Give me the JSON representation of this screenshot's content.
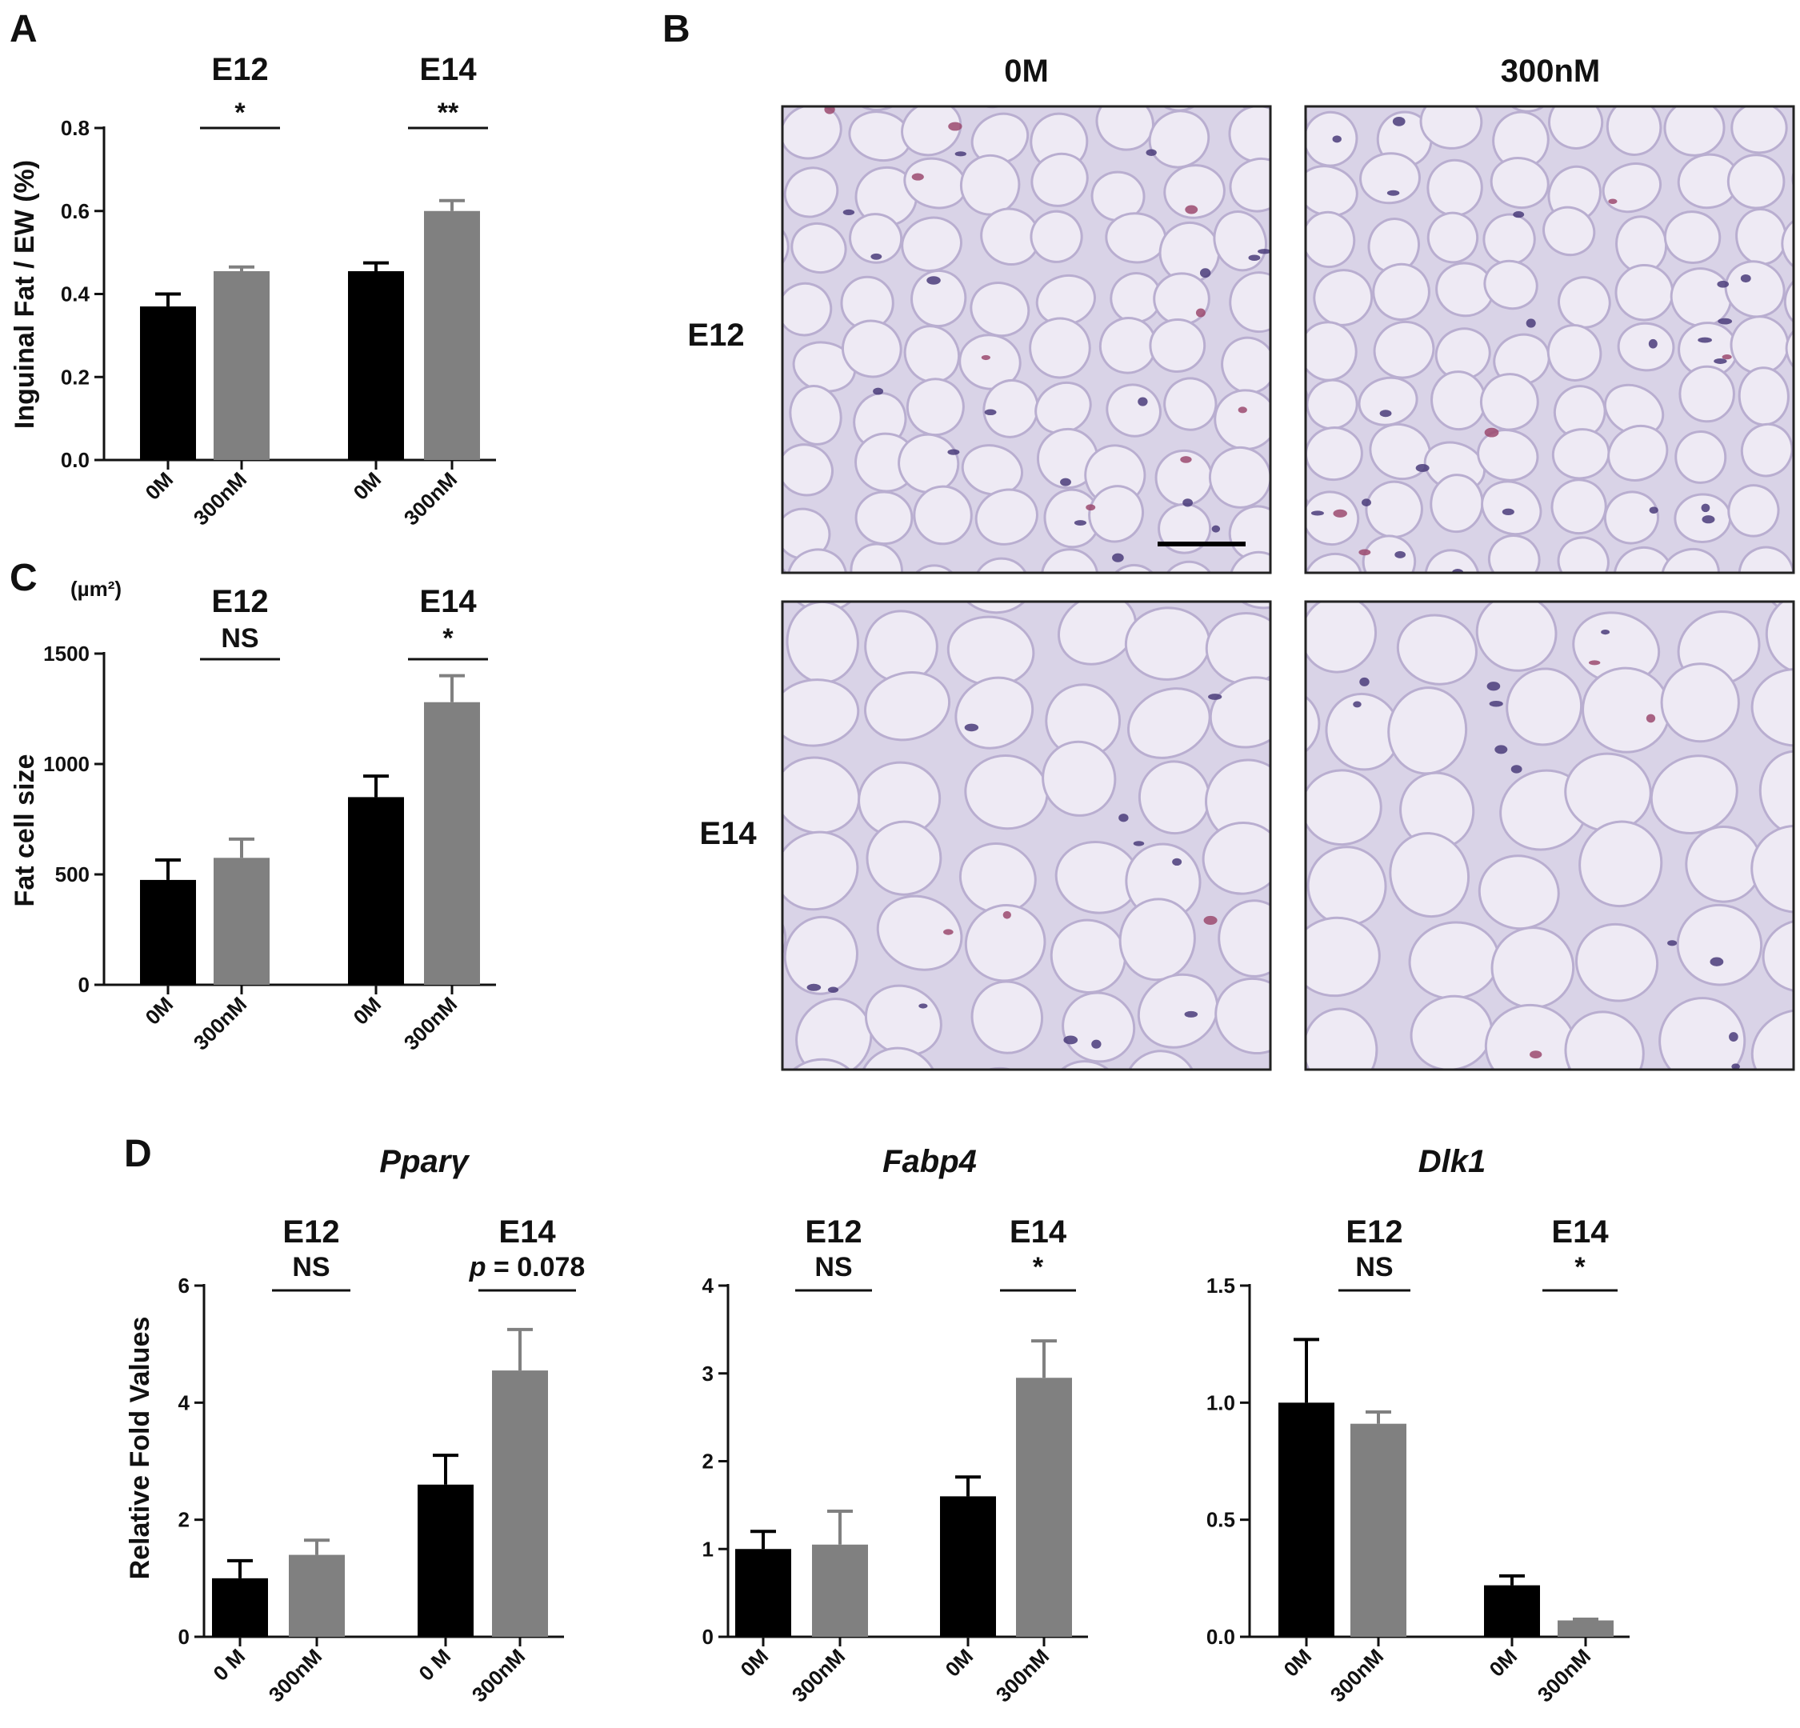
{
  "panels": {
    "a": "A",
    "b": "B",
    "c": "C",
    "d": "D"
  },
  "colors": {
    "group1": "#000000",
    "group2": "#808080",
    "tissue_bg": "#d9d3e7",
    "cell_fill": "#eeeaf4",
    "membrane": "#b9aed0",
    "nucleus": "#4a3c7a",
    "nucleus_pink": "#9b4a6e"
  },
  "histology": {
    "column_labels": [
      "0M",
      "300nM"
    ],
    "row_labels": [
      "E12",
      "E14"
    ],
    "scale_bar": true
  },
  "chart_data": [
    {
      "id": "A",
      "type": "bar",
      "title": "",
      "xlabel": "",
      "ylabel": "Inguinal Fat / EW (%)",
      "unit_label": "",
      "groups": [
        "E12",
        "E14"
      ],
      "categories": [
        "0M",
        "300nM",
        "0M",
        "300nM"
      ],
      "values": [
        0.37,
        0.455,
        0.455,
        0.6
      ],
      "errors": [
        0.03,
        0.01,
        0.02,
        0.025
      ],
      "bar_colors": [
        "#000000",
        "#808080",
        "#000000",
        "#808080"
      ],
      "significance": [
        "*",
        "**"
      ],
      "ylim": [
        0,
        0.8
      ],
      "yticks": [
        "0.0",
        "0.2",
        "0.4",
        "0.6",
        "0.8"
      ],
      "grid": false,
      "legend": "none"
    },
    {
      "id": "C",
      "type": "bar",
      "title": "",
      "xlabel": "",
      "ylabel": "Fat cell size",
      "unit_label": "(µm²)",
      "groups": [
        "E12",
        "E14"
      ],
      "categories": [
        "0M",
        "300nM",
        "0M",
        "300nM"
      ],
      "values": [
        475,
        575,
        850,
        1280
      ],
      "errors": [
        90,
        85,
        95,
        120
      ],
      "bar_colors": [
        "#000000",
        "#808080",
        "#000000",
        "#808080"
      ],
      "significance": [
        "NS",
        "*"
      ],
      "ylim": [
        0,
        1500
      ],
      "yticks": [
        "0",
        "500",
        "1000",
        "1500"
      ],
      "grid": false,
      "legend": "none"
    },
    {
      "id": "D1",
      "type": "bar",
      "title": "Pparγ",
      "xlabel": "",
      "ylabel": "Relative Fold Values",
      "unit_label": "",
      "groups": [
        "E12",
        "E14"
      ],
      "categories": [
        "0 M",
        "300nM",
        "0 M",
        "300nM"
      ],
      "values": [
        1.0,
        1.4,
        2.6,
        4.55
      ],
      "errors": [
        0.3,
        0.25,
        0.5,
        0.7
      ],
      "bar_colors": [
        "#000000",
        "#808080",
        "#000000",
        "#808080"
      ],
      "significance": [
        "NS",
        "p = 0.078"
      ],
      "ylim": [
        0,
        6
      ],
      "yticks": [
        "0",
        "2",
        "4",
        "6"
      ],
      "grid": false,
      "legend": "none"
    },
    {
      "id": "D2",
      "type": "bar",
      "title": "Fabp4",
      "xlabel": "",
      "ylabel": "",
      "unit_label": "",
      "groups": [
        "E12",
        "E14"
      ],
      "categories": [
        "0M",
        "300nM",
        "0M",
        "300nM"
      ],
      "values": [
        1.0,
        1.05,
        1.6,
        2.95
      ],
      "errors": [
        0.2,
        0.38,
        0.22,
        0.42
      ],
      "bar_colors": [
        "#000000",
        "#808080",
        "#000000",
        "#808080"
      ],
      "significance": [
        "NS",
        "*"
      ],
      "ylim": [
        0,
        4
      ],
      "yticks": [
        "0",
        "1",
        "2",
        "3",
        "4"
      ],
      "grid": false,
      "legend": "none"
    },
    {
      "id": "D3",
      "type": "bar",
      "title": "Dlk1",
      "xlabel": "",
      "ylabel": "",
      "unit_label": "",
      "groups": [
        "E12",
        "E14"
      ],
      "categories": [
        "0M",
        "300nM",
        "0M",
        "300nM"
      ],
      "values": [
        1.0,
        0.91,
        0.22,
        0.07
      ],
      "errors": [
        0.27,
        0.05,
        0.04,
        0.005
      ],
      "bar_colors": [
        "#000000",
        "#808080",
        "#000000",
        "#808080"
      ],
      "significance": [
        "NS",
        "*"
      ],
      "ylim": [
        0,
        1.5
      ],
      "yticks": [
        "0.0",
        "0.5",
        "1.0",
        "1.5"
      ],
      "grid": false,
      "legend": "none"
    }
  ]
}
